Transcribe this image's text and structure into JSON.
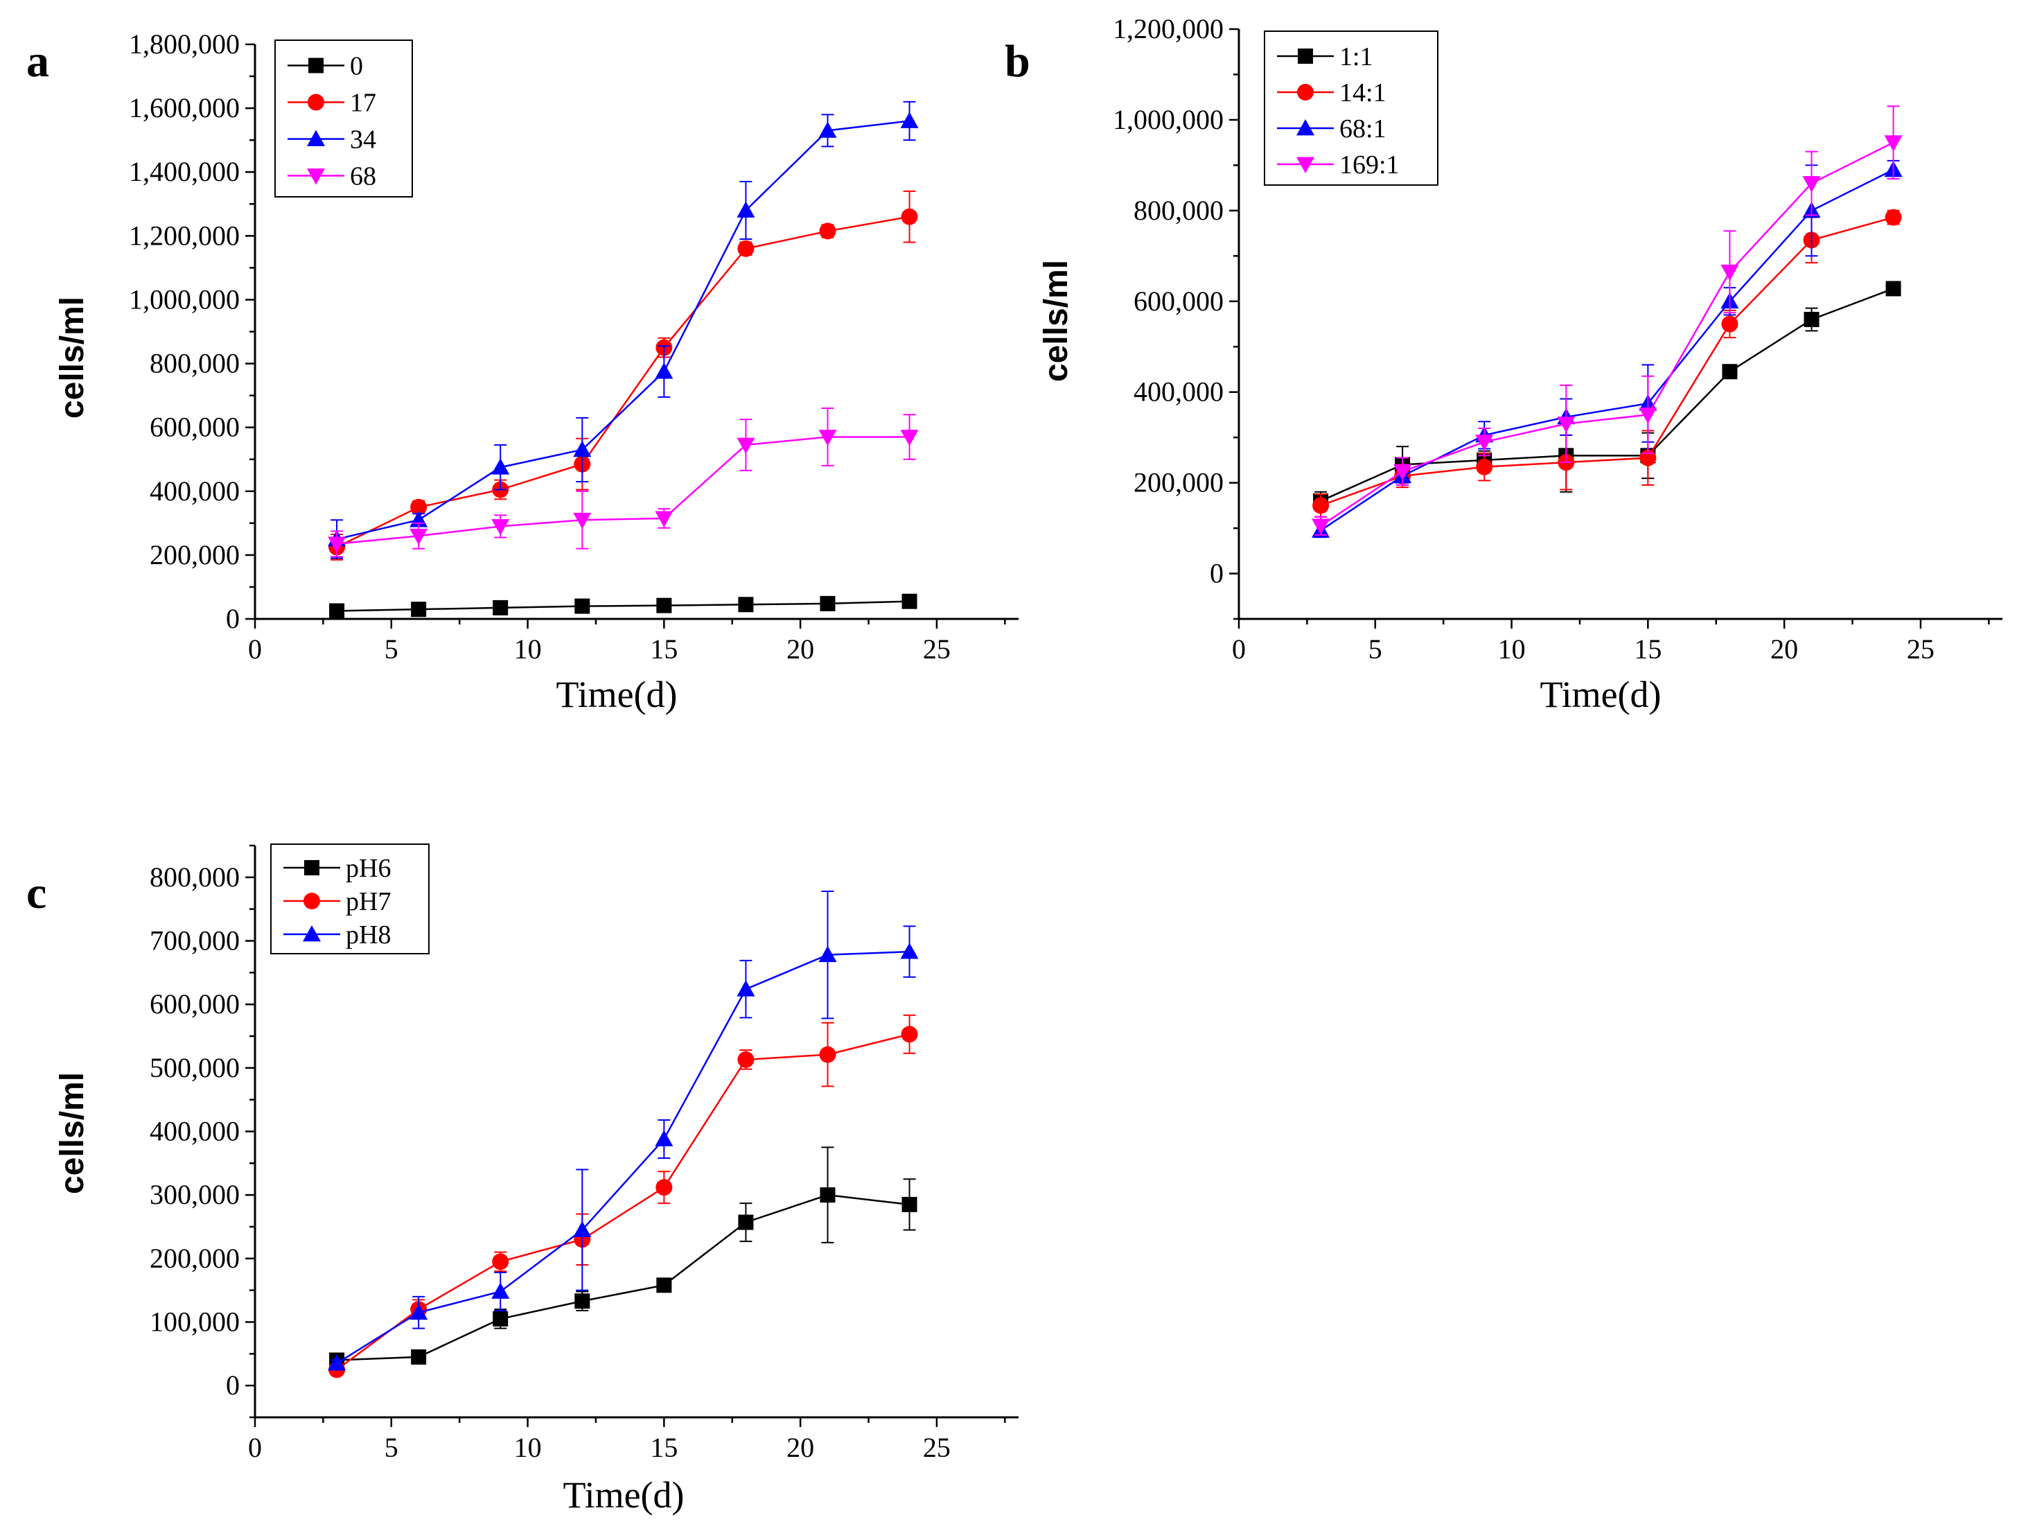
{
  "chart_data": [
    {
      "type": "line",
      "panel_label": "a",
      "xlabel": "Time(d)",
      "ylabel": "cells/ml",
      "xlim": [
        0,
        28
      ],
      "ylim": [
        0,
        1800000
      ],
      "x_ticks": [
        0,
        5,
        10,
        15,
        20,
        25
      ],
      "x_tick_labels": [
        "0",
        "5",
        "10",
        "15",
        "20",
        "25"
      ],
      "y_ticks": [
        0,
        200000,
        400000,
        600000,
        800000,
        1000000,
        1200000,
        1400000,
        1600000,
        1800000
      ],
      "y_tick_labels": [
        "0",
        "200,000",
        "400,000",
        "600,000",
        "800,000",
        "1,000,000",
        "1,200,000",
        "1,400,000",
        "1,600,000",
        "1,800,000"
      ],
      "legend_position": "top-left",
      "x": [
        3,
        6,
        9,
        12,
        15,
        18,
        21,
        24
      ],
      "series": [
        {
          "name": "0",
          "color": "#000000",
          "marker": "square",
          "values": [
            25000,
            30000,
            35000,
            40000,
            42000,
            45000,
            48000,
            55000
          ],
          "errors": [
            5000,
            5000,
            5000,
            5000,
            5000,
            5000,
            5000,
            8000
          ]
        },
        {
          "name": "17",
          "color": "#ff0000",
          "marker": "circle",
          "values": [
            225000,
            350000,
            405000,
            485000,
            850000,
            1160000,
            1215000,
            1260000
          ],
          "errors": [
            40000,
            20000,
            30000,
            80000,
            30000,
            20000,
            20000,
            80000
          ]
        },
        {
          "name": "34",
          "color": "#0000ff",
          "marker": "triangle-up",
          "values": [
            250000,
            310000,
            475000,
            530000,
            775000,
            1280000,
            1530000,
            1560000
          ],
          "errors": [
            60000,
            20000,
            70000,
            100000,
            80000,
            90000,
            50000,
            60000
          ]
        },
        {
          "name": "68",
          "color": "#ff00ff",
          "marker": "triangle-down",
          "values": [
            235000,
            260000,
            290000,
            310000,
            315000,
            545000,
            570000,
            570000
          ],
          "errors": [
            40000,
            40000,
            35000,
            90000,
            30000,
            80000,
            90000,
            70000
          ]
        }
      ]
    },
    {
      "type": "line",
      "panel_label": "b",
      "xlabel": "Time(d)",
      "ylabel": "cells/ml",
      "xlim": [
        0,
        28
      ],
      "ylim": [
        -100000,
        1200000
      ],
      "x_ticks": [
        0,
        5,
        10,
        15,
        20,
        25
      ],
      "x_tick_labels": [
        "0",
        "5",
        "10",
        "15",
        "20",
        "25"
      ],
      "y_ticks": [
        0,
        200000,
        400000,
        600000,
        800000,
        1000000,
        1200000
      ],
      "y_tick_labels": [
        "0",
        "200,000",
        "400,000",
        "600,000",
        "800,000",
        "1,000,000",
        "1,200,000"
      ],
      "legend_position": "top-left",
      "x": [
        3,
        6,
        9,
        12,
        15,
        18,
        21,
        24
      ],
      "series": [
        {
          "name": "1:1",
          "color": "#000000",
          "marker": "square",
          "values": [
            160000,
            240000,
            250000,
            260000,
            260000,
            445000,
            560000,
            628000
          ],
          "errors": [
            20000,
            40000,
            20000,
            80000,
            50000,
            15000,
            25000,
            15000
          ]
        },
        {
          "name": "14:1",
          "color": "#ff0000",
          "marker": "circle",
          "values": [
            150000,
            215000,
            235000,
            245000,
            255000,
            550000,
            735000,
            785000
          ],
          "errors": [
            25000,
            25000,
            30000,
            60000,
            60000,
            30000,
            50000,
            15000
          ]
        },
        {
          "name": "68:1",
          "color": "#0000ff",
          "marker": "triangle-up",
          "values": [
            95000,
            215000,
            305000,
            345000,
            375000,
            600000,
            800000,
            890000
          ],
          "errors": [
            15000,
            20000,
            30000,
            40000,
            85000,
            30000,
            100000,
            20000
          ]
        },
        {
          "name": "169:1",
          "color": "#ff00ff",
          "marker": "triangle-down",
          "values": [
            105000,
            225000,
            290000,
            330000,
            350000,
            665000,
            860000,
            950000
          ],
          "errors": [
            20000,
            30000,
            30000,
            85000,
            85000,
            90000,
            70000,
            80000
          ]
        }
      ]
    },
    {
      "type": "line",
      "panel_label": "c",
      "xlabel": "Time(d)",
      "ylabel": "cells/ml",
      "xlim": [
        0,
        28
      ],
      "ylim": [
        -50000,
        850000
      ],
      "x_ticks": [
        0,
        5,
        10,
        15,
        20,
        25
      ],
      "x_tick_labels": [
        "0",
        "5",
        "10",
        "15",
        "20",
        "25"
      ],
      "y_ticks": [
        0,
        100000,
        200000,
        300000,
        400000,
        500000,
        600000,
        700000,
        800000
      ],
      "y_tick_labels": [
        "0",
        "100,000",
        "200,000",
        "300,000",
        "400,000",
        "500,000",
        "600,000",
        "700,000",
        "800,000"
      ],
      "legend_position": "top-left",
      "x": [
        3,
        6,
        9,
        12,
        15,
        18,
        21,
        24
      ],
      "series": [
        {
          "name": "pH6",
          "color": "#000000",
          "marker": "square",
          "values": [
            40000,
            45000,
            105000,
            133000,
            158000,
            257000,
            300000,
            285000
          ],
          "errors": [
            5000,
            5000,
            15000,
            15000,
            5000,
            30000,
            75000,
            40000
          ]
        },
        {
          "name": "pH7",
          "color": "#ff0000",
          "marker": "circle",
          "values": [
            25000,
            120000,
            195000,
            230000,
            312000,
            513000,
            521000,
            553000
          ],
          "errors": [
            5000,
            15000,
            15000,
            40000,
            25000,
            15000,
            50000,
            30000
          ]
        },
        {
          "name": "pH8",
          "color": "#0000ff",
          "marker": "triangle-up",
          "values": [
            35000,
            115000,
            148000,
            245000,
            388000,
            624000,
            678000,
            683000
          ],
          "errors": [
            5000,
            25000,
            30000,
            95000,
            30000,
            45000,
            100000,
            40000
          ]
        }
      ]
    }
  ]
}
